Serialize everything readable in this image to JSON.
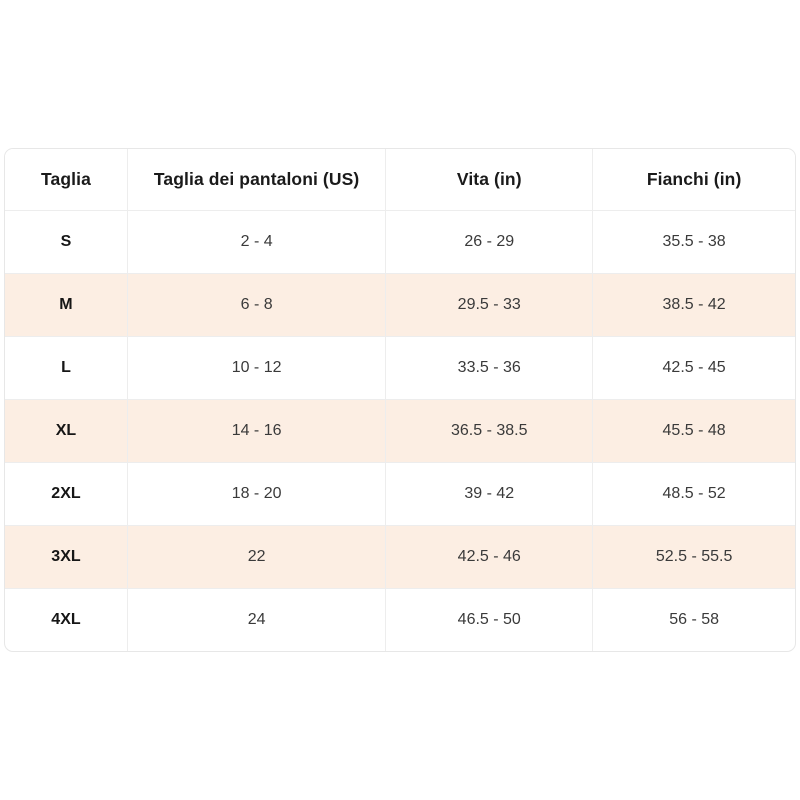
{
  "colors": {
    "stripe_background": "#fceee3",
    "grid_line": "#ededed",
    "outer_border": "#e7e7e7",
    "header_text": "#1a1a1a",
    "value_text": "#3a3a3a"
  },
  "table": {
    "headers": [
      "Taglia",
      "Taglia dei pantaloni (US)",
      "Vita (in)",
      "Fianchi (in)"
    ],
    "rows": [
      [
        "S",
        "2 - 4",
        "26 - 29",
        "35.5 - 38"
      ],
      [
        "M",
        "6 - 8",
        "29.5 - 33",
        "38.5 - 42"
      ],
      [
        "L",
        "10 - 12",
        "33.5 - 36",
        "42.5 - 45"
      ],
      [
        "XL",
        "14 - 16",
        "36.5 - 38.5",
        "45.5 - 48"
      ],
      [
        "2XL",
        "18 - 20",
        "39 - 42",
        "48.5 - 52"
      ],
      [
        "3XL",
        "22",
        "42.5 - 46",
        "52.5 - 55.5"
      ],
      [
        "4XL",
        "24",
        "46.5 - 50",
        "56 - 58"
      ]
    ]
  }
}
